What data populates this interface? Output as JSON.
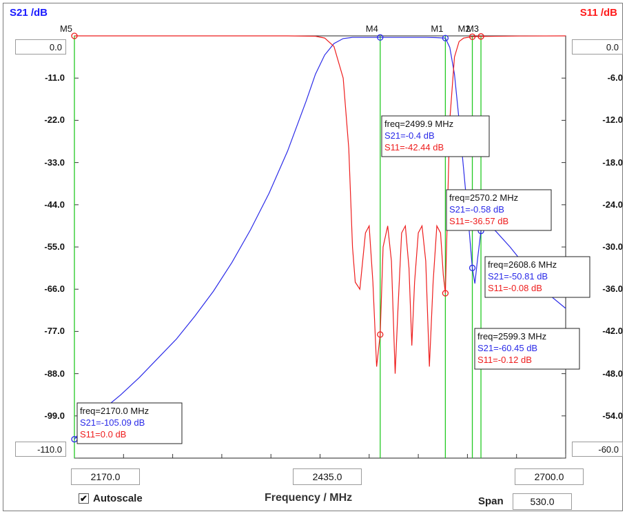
{
  "left_axis_title": "S21 /dB",
  "right_axis_title": "S11 /dB",
  "left_ticks": [
    "0.0",
    "-11.0",
    "-22.0",
    "-33.0",
    "-44.0",
    "-55.0",
    "-66.0",
    "-77.0",
    "-88.0",
    "-99.0",
    "-110.0"
  ],
  "right_ticks": [
    "0.0",
    "-6.0",
    "-12.0",
    "-18.0",
    "-24.0",
    "-30.0",
    "-36.0",
    "-42.0",
    "-48.0",
    "-54.0",
    "-60.0"
  ],
  "x_start": "2170.0",
  "x_center": "2435.0",
  "x_stop": "2700.0",
  "x_axis_label": "Frequency / MHz",
  "autoscale_label": "Autoscale",
  "autoscale_checked": "✔",
  "span_label": "Span",
  "span_value": "530.0",
  "colors": {
    "s21": "#2a2ae8",
    "s11": "#ee1c1c",
    "marker_line": "#22c922",
    "grid_bg": "#ffffff"
  },
  "chart_data": {
    "type": "line",
    "xlabel": "Frequency / MHz",
    "ylabel_left": "S21 /dB",
    "ylabel_right": "S11 /dB",
    "xlim": [
      2170,
      2700
    ],
    "ylim_left": [
      -110,
      0
    ],
    "ylim_right": [
      -60,
      0
    ],
    "grid": false,
    "series": [
      {
        "name": "S21",
        "axis": "left",
        "points": [
          [
            2170,
            -105.09
          ],
          [
            2180,
            -102
          ],
          [
            2200,
            -97.5
          ],
          [
            2220,
            -93.5
          ],
          [
            2240,
            -89
          ],
          [
            2260,
            -84
          ],
          [
            2280,
            -79
          ],
          [
            2300,
            -73
          ],
          [
            2320,
            -66.5
          ],
          [
            2340,
            -59
          ],
          [
            2360,
            -50.5
          ],
          [
            2380,
            -41
          ],
          [
            2400,
            -30
          ],
          [
            2420,
            -17
          ],
          [
            2430,
            -10
          ],
          [
            2440,
            -5
          ],
          [
            2450,
            -2
          ],
          [
            2460,
            -0.7
          ],
          [
            2470,
            -0.4
          ],
          [
            2480,
            -0.4
          ],
          [
            2490,
            -0.4
          ],
          [
            2499.9,
            -0.4
          ],
          [
            2510,
            -0.4
          ],
          [
            2520,
            -0.4
          ],
          [
            2530,
            -0.4
          ],
          [
            2540,
            -0.4
          ],
          [
            2550,
            -0.4
          ],
          [
            2560,
            -0.45
          ],
          [
            2570.2,
            -0.58
          ],
          [
            2575,
            -3
          ],
          [
            2580,
            -10
          ],
          [
            2585,
            -22
          ],
          [
            2590,
            -35
          ],
          [
            2595,
            -48
          ],
          [
            2599.3,
            -60.45
          ],
          [
            2602,
            -64.5
          ],
          [
            2605,
            -58
          ],
          [
            2608.6,
            -50.81
          ],
          [
            2615,
            -49
          ],
          [
            2625,
            -51
          ],
          [
            2640,
            -55
          ],
          [
            2660,
            -61
          ],
          [
            2680,
            -67
          ],
          [
            2700,
            -71
          ]
        ]
      },
      {
        "name": "S11",
        "axis": "right",
        "points": [
          [
            2170,
            -0.0
          ],
          [
            2400,
            -0.0
          ],
          [
            2430,
            -0.05
          ],
          [
            2440,
            -0.3
          ],
          [
            2450,
            -1.5
          ],
          [
            2460,
            -6
          ],
          [
            2466,
            -16
          ],
          [
            2470,
            -30
          ],
          [
            2473,
            -35
          ],
          [
            2478,
            -36
          ],
          [
            2484,
            -28
          ],
          [
            2488,
            -27
          ],
          [
            2492,
            -35
          ],
          [
            2496,
            -47
          ],
          [
            2499.9,
            -42.44
          ],
          [
            2503,
            -30
          ],
          [
            2508,
            -27
          ],
          [
            2512,
            -32
          ],
          [
            2516,
            -48
          ],
          [
            2519,
            -39
          ],
          [
            2523,
            -28
          ],
          [
            2527,
            -27
          ],
          [
            2531,
            -33
          ],
          [
            2534,
            -44
          ],
          [
            2537,
            -35
          ],
          [
            2541,
            -28
          ],
          [
            2545,
            -27
          ],
          [
            2549,
            -32
          ],
          [
            2553,
            -47
          ],
          [
            2557,
            -35
          ],
          [
            2561,
            -27
          ],
          [
            2565,
            -28
          ],
          [
            2568,
            -34
          ],
          [
            2570.2,
            -36.57
          ],
          [
            2575,
            -12
          ],
          [
            2580,
            -3
          ],
          [
            2585,
            -0.8
          ],
          [
            2590,
            -0.3
          ],
          [
            2599.3,
            -0.12
          ],
          [
            2608.6,
            -0.08
          ],
          [
            2650,
            -0.02
          ],
          [
            2700,
            -0.0
          ]
        ]
      }
    ],
    "markers": [
      {
        "name": "M5",
        "freq": 2170.0,
        "s21": -105.09,
        "s11": 0.0
      },
      {
        "name": "M4",
        "freq": 2499.9,
        "s21": -0.4,
        "s11": -42.44
      },
      {
        "name": "M1",
        "freq": 2570.2,
        "s21": -0.58,
        "s11": -36.57
      },
      {
        "name": "M2",
        "freq": 2599.3,
        "s21": -60.45,
        "s11": -0.12
      },
      {
        "name": "M3",
        "freq": 2608.6,
        "s21": -50.81,
        "s11": -0.08
      }
    ],
    "annotations": [
      {
        "marker": "M4",
        "lines": [
          "freq=2499.9 MHz",
          "S21=-0.4 dB",
          "S11=-42.44 dB"
        ]
      },
      {
        "marker": "M1",
        "lines": [
          "freq=2570.2 MHz",
          "S21=-0.58 dB",
          "S11=-36.57 dB"
        ]
      },
      {
        "marker": "M3",
        "lines": [
          "freq=2608.6 MHz",
          "S21=-50.81 dB",
          "S11=-0.08 dB"
        ]
      },
      {
        "marker": "M2",
        "lines": [
          "freq=2599.3 MHz",
          "S21=-60.45 dB",
          "S11=-0.12 dB"
        ]
      },
      {
        "marker": "M5",
        "lines": [
          "freq=2170.0 MHz",
          "S21=-105.09 dB",
          "S11=0.0 dB"
        ]
      }
    ]
  }
}
